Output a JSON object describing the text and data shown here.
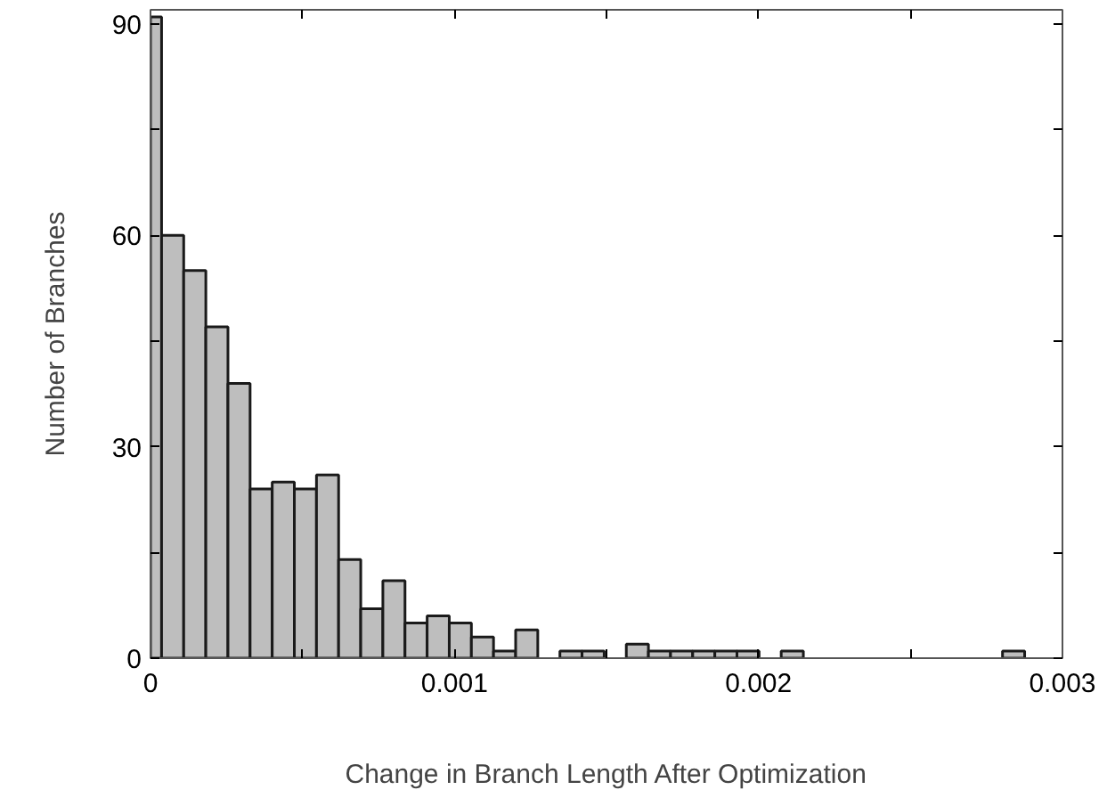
{
  "chart_data": {
    "type": "histogram",
    "xlabel": "Change in Branch Length After Optimization",
    "ylabel": "Number of Branches",
    "bins": [
      0,
      3.64e-05,
      0.0001092,
      0.000182,
      0.0002548,
      0.0003276,
      0.0004004,
      0.0004732,
      0.000546,
      0.0006188,
      0.0006916,
      0.0007644,
      0.0008372,
      0.00091,
      0.0009828,
      0.0010556,
      0.0011284,
      0.0012012,
      0.001274,
      0.0013468,
      0.0014196,
      0.0014924,
      0.0015652,
      0.001638,
      0.0017108,
      0.0017836,
      0.0018564,
      0.0019292,
      0.002002,
      0.0020748,
      0.0021476,
      0.0028028,
      0.0028756
    ],
    "values": [
      91,
      60,
      55,
      47,
      39,
      24,
      25,
      24,
      26,
      14,
      7,
      11,
      5,
      6,
      5,
      3,
      1,
      4,
      0,
      1,
      1,
      0,
      2,
      1,
      1,
      1,
      1,
      1,
      0,
      1,
      0,
      1
    ],
    "color": "#bebebe",
    "xlim": [
      0,
      0.003
    ],
    "xticks": [
      0,
      {
        "value": 0.001,
        "label": "0.001"
      },
      {
        "value": 0.002,
        "label": "0.002"
      },
      {
        "value": 0.003,
        "label": "0.003"
      }
    ],
    "ylim": [
      0,
      92
    ],
    "yticks": [
      0,
      30,
      60,
      90
    ],
    "grid": false
  }
}
